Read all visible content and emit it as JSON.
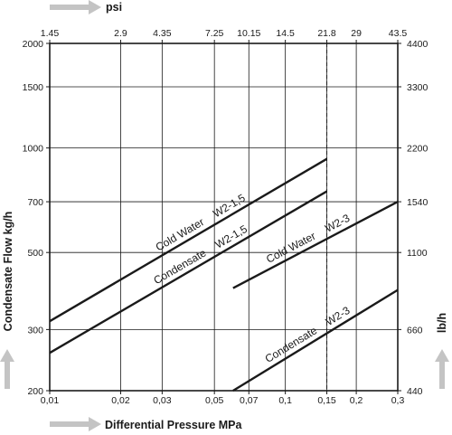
{
  "chart_data": {
    "type": "line",
    "title": "",
    "xlabel": "Differential Pressure MPa",
    "ylabel": "Condensate Flow kg/h",
    "x2label": "psi",
    "y2label": "lb/h",
    "x_scale": "log",
    "y_scale": "log",
    "xlim": [
      0.01,
      0.3
    ],
    "ylim": [
      200,
      2000
    ],
    "grid": true,
    "x_ticks": [
      {
        "v": 0.01,
        "label": "0,01"
      },
      {
        "v": 0.02,
        "label": "0,02"
      },
      {
        "v": 0.03,
        "label": "0,03"
      },
      {
        "v": 0.05,
        "label": "0,05"
      },
      {
        "v": 0.07,
        "label": "0,07"
      },
      {
        "v": 0.1,
        "label": "0,1"
      },
      {
        "v": 0.15,
        "label": "0,15"
      },
      {
        "v": 0.2,
        "label": "0,2"
      },
      {
        "v": 0.3,
        "label": "0,3"
      }
    ],
    "x2_ticks": [
      {
        "v": 0.01,
        "label": "1.45"
      },
      {
        "v": 0.02,
        "label": "2.9"
      },
      {
        "v": 0.03,
        "label": "4.35"
      },
      {
        "v": 0.05,
        "label": "7.25"
      },
      {
        "v": 0.07,
        "label": "10.15"
      },
      {
        "v": 0.1,
        "label": "14.5"
      },
      {
        "v": 0.15,
        "label": "21.8"
      },
      {
        "v": 0.2,
        "label": "29"
      },
      {
        "v": 0.3,
        "label": "43.5"
      }
    ],
    "y_ticks": [
      {
        "v": 200,
        "label": "200"
      },
      {
        "v": 300,
        "label": "300"
      },
      {
        "v": 500,
        "label": "500"
      },
      {
        "v": 700,
        "label": "700"
      },
      {
        "v": 1000,
        "label": "1000"
      },
      {
        "v": 1500,
        "label": "1500"
      },
      {
        "v": 2000,
        "label": "2000"
      }
    ],
    "y2_ticks": [
      {
        "v": 200,
        "label": "440"
      },
      {
        "v": 300,
        "label": "660"
      },
      {
        "v": 500,
        "label": "1100"
      },
      {
        "v": 700,
        "label": "1540"
      },
      {
        "v": 1000,
        "label": "2200"
      },
      {
        "v": 1500,
        "label": "3300"
      },
      {
        "v": 2000,
        "label": "4400"
      }
    ],
    "reference_lines": [
      {
        "x": 0.15,
        "style": "dashed"
      }
    ],
    "series": [
      {
        "name": "Cold Water W2-1,5",
        "x": [
          0.01,
          0.15
        ],
        "y": [
          317,
          930
        ]
      },
      {
        "name": "Condensate W2-1,5",
        "x": [
          0.01,
          0.15
        ],
        "y": [
          257,
          750
        ]
      },
      {
        "name": "Cold Water W2-3",
        "x": [
          0.06,
          0.3
        ],
        "y": [
          395,
          700
        ]
      },
      {
        "name": "Condensate W2-3",
        "x": [
          0.06,
          0.3
        ],
        "y": [
          200,
          390
        ]
      }
    ]
  }
}
